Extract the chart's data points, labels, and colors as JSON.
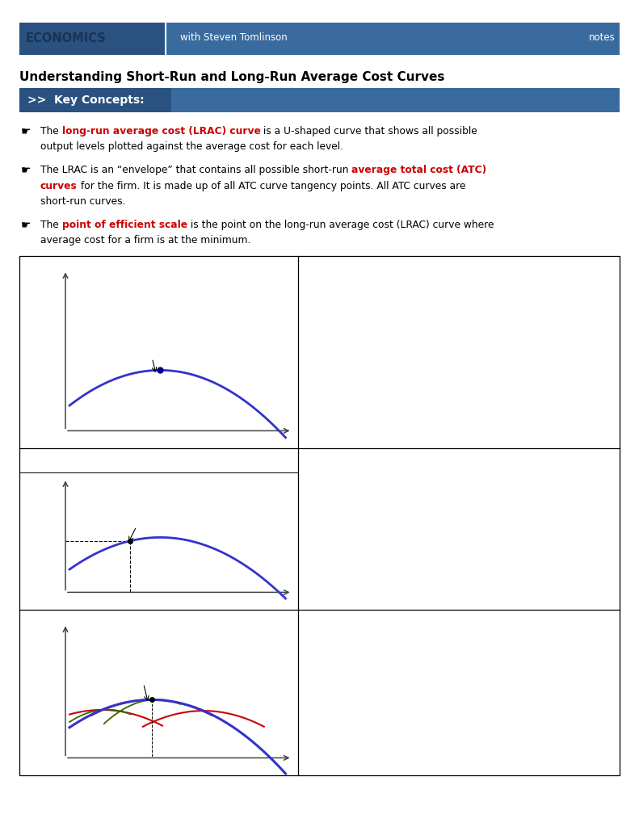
{
  "page_width": 7.91,
  "page_height": 10.24,
  "bg_color": "#ffffff",
  "bar_color": "#3a6b9e",
  "bar_dark": "#2a5280",
  "header_economics": "ECONOMICS",
  "header_subtitle": "with Steven Tomlinson",
  "header_notes": "notes",
  "title": "Understanding Short-Run and Long-Run Average Cost Curves",
  "kc_text": ">>  Key Concepts:",
  "lrac_color": "#3333cc",
  "atc_color": "#cc0000",
  "mc_color": "#336600",
  "dot_color": "#000080",
  "black": "#000000",
  "red": "#cc0000",
  "green_dollar": "#006600"
}
